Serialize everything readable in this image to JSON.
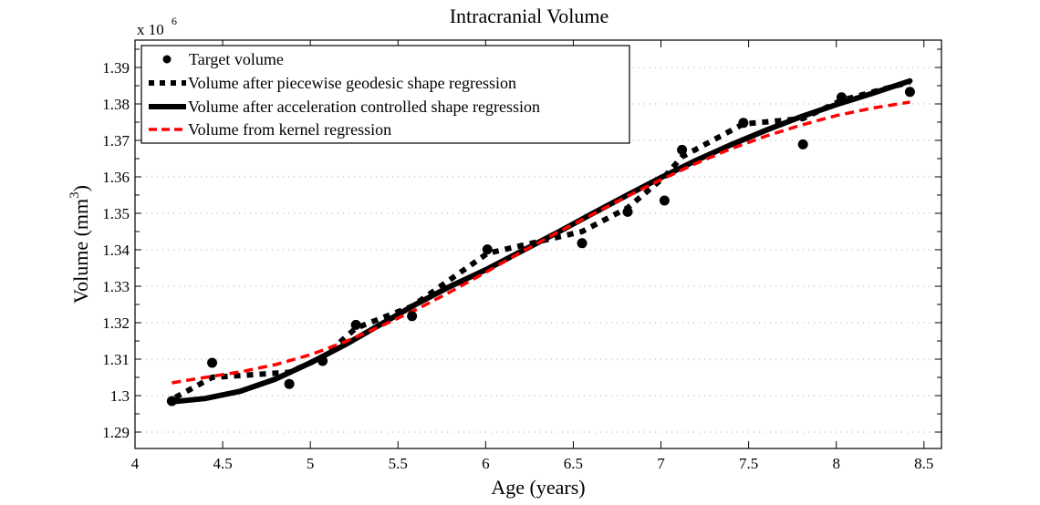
{
  "chart_data": {
    "type": "line",
    "title": "Intracranial Volume",
    "xlabel": "Age (years)",
    "ylabel": "Volume (mm",
    "ylabel_superscript": "3",
    "ylabel_suffix": ")",
    "y_multiplier_label": "x 10",
    "y_multiplier_exponent": "6",
    "xlim": [
      4,
      8.6
    ],
    "ylim": [
      1.2855,
      1.3975
    ],
    "xticks": [
      4,
      4.5,
      5,
      5.5,
      6,
      6.5,
      7,
      7.5,
      8,
      8.5
    ],
    "xtick_labels": [
      "4",
      "4.5",
      "5",
      "5.5",
      "6",
      "6.5",
      "7",
      "7.5",
      "8",
      "8.5"
    ],
    "yticks": [
      1.29,
      1.3,
      1.31,
      1.32,
      1.33,
      1.34,
      1.35,
      1.36,
      1.37,
      1.38,
      1.39
    ],
    "ytick_labels": [
      "1.29",
      "1.3",
      "1.31",
      "1.32",
      "1.33",
      "1.34",
      "1.35",
      "1.36",
      "1.37",
      "1.38",
      "1.39"
    ],
    "grid": "y-dotted",
    "legend_position": "top-left",
    "series": [
      {
        "name": "Target volume",
        "style": "markers",
        "color": "#000000",
        "x": [
          4.21,
          4.44,
          4.88,
          5.07,
          5.26,
          5.58,
          6.01,
          6.55,
          6.81,
          7.02,
          7.12,
          7.47,
          7.81,
          8.03,
          8.42
        ],
        "y": [
          1.2985,
          1.309,
          1.3032,
          1.3095,
          1.3194,
          1.3218,
          1.3401,
          1.3418,
          1.3504,
          1.3535,
          1.3674,
          1.3748,
          1.3689,
          1.3818,
          1.3833
        ]
      },
      {
        "name": "Volume after piecewise geodesic shape regression",
        "style": "dotted-thick",
        "color": "#000000",
        "x": [
          4.23,
          4.44,
          4.88,
          5.07,
          5.26,
          5.58,
          6.01,
          6.55,
          6.81,
          7.02,
          7.12,
          7.47,
          7.81,
          8.03,
          8.42
        ],
        "y": [
          1.2995,
          1.305,
          1.3064,
          1.3105,
          1.3185,
          1.3245,
          1.339,
          1.345,
          1.3515,
          1.36,
          1.3655,
          1.3745,
          1.376,
          1.381,
          1.386
        ]
      },
      {
        "name": "Volume after acceleration controlled shape regression",
        "style": "solid-thick",
        "color": "#000000",
        "x": [
          4.21,
          4.4,
          4.6,
          4.8,
          5.0,
          5.2,
          5.4,
          5.6,
          5.8,
          6.0,
          6.2,
          6.4,
          6.6,
          6.8,
          7.0,
          7.2,
          7.4,
          7.6,
          7.8,
          8.0,
          8.2,
          8.42
        ],
        "y": [
          1.2983,
          1.2992,
          1.3012,
          1.3045,
          1.309,
          1.314,
          1.3195,
          1.325,
          1.33,
          1.3345,
          1.3395,
          1.3445,
          1.3497,
          1.3548,
          1.3598,
          1.3645,
          1.3688,
          1.3728,
          1.3765,
          1.3798,
          1.3828,
          1.3863
        ]
      },
      {
        "name": "Volume from kernel regression",
        "style": "dashed",
        "color": "#ff0000",
        "x": [
          4.21,
          4.4,
          4.6,
          4.8,
          5.0,
          5.2,
          5.4,
          5.6,
          5.8,
          6.0,
          6.2,
          6.4,
          6.6,
          6.8,
          7.0,
          7.2,
          7.4,
          7.6,
          7.8,
          8.0,
          8.2,
          8.42
        ],
        "y": [
          1.3035,
          1.305,
          1.3065,
          1.3085,
          1.3112,
          1.3148,
          1.319,
          1.3235,
          1.3285,
          1.3338,
          1.3393,
          1.3445,
          1.3495,
          1.3545,
          1.3592,
          1.3637,
          1.3677,
          1.3712,
          1.3742,
          1.3768,
          1.3788,
          1.3805
        ]
      }
    ]
  }
}
